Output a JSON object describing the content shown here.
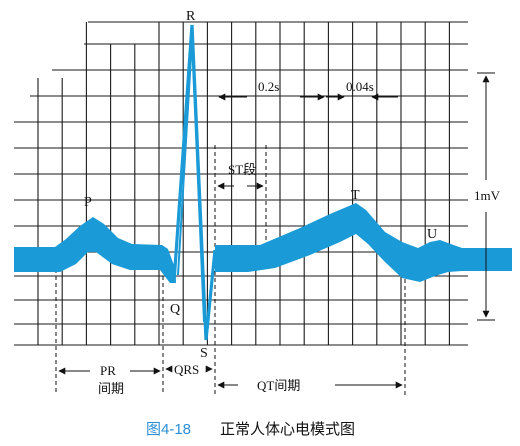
{
  "figure": {
    "number": "图4-18",
    "caption": "正常人体心电模式图",
    "accent_color": "#1a9ad6",
    "grid_color": "#1a1a1a"
  },
  "waves": {
    "p": "P",
    "q": "Q",
    "r": "R",
    "s": "S",
    "t": "T",
    "u": "U"
  },
  "annotations": {
    "large_square": "0.2s",
    "small_square": "0.04s",
    "st_segment": "ST段",
    "amplitude": "1mV",
    "pr_interval_line1": "PR",
    "pr_interval_line2": "间期",
    "qrs_complex": "QRS",
    "qt_interval": "QT间期"
  }
}
